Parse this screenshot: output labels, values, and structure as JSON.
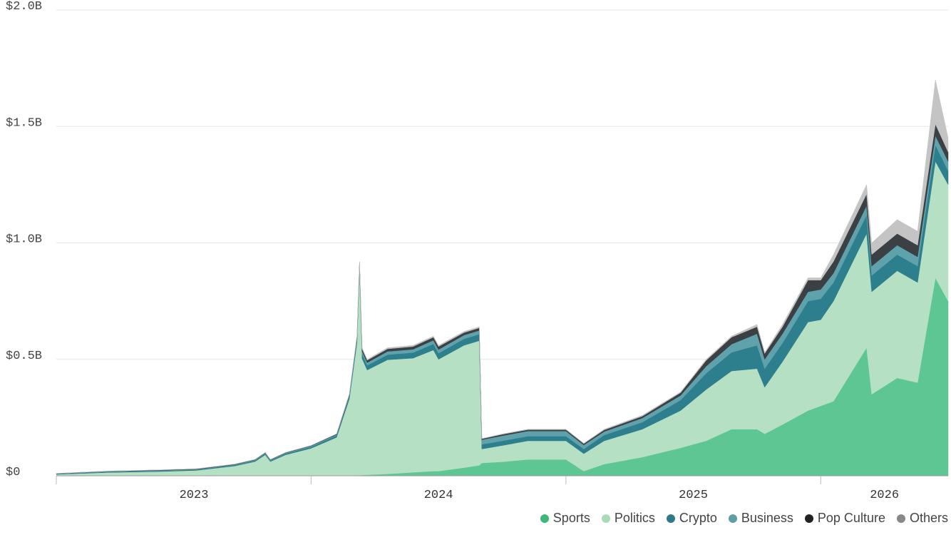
{
  "chart_data": {
    "type": "stacked-area",
    "x": [
      2023.0,
      2023.2,
      2023.4,
      2023.55,
      2023.7,
      2023.78,
      2023.82,
      2023.84,
      2023.9,
      2024.0,
      2024.1,
      2024.15,
      2024.18,
      2024.19,
      2024.2,
      2024.22,
      2024.3,
      2024.4,
      2024.48,
      2024.5,
      2024.6,
      2024.66,
      2024.67,
      2024.75,
      2024.85,
      2024.95,
      2025.0,
      2025.07,
      2025.15,
      2025.3,
      2025.45,
      2025.55,
      2025.65,
      2025.75,
      2025.78,
      2025.85,
      2025.95,
      2026.0,
      2026.05,
      2026.18,
      2026.2,
      2026.3,
      2026.38,
      2026.45,
      2026.5
    ],
    "series": [
      {
        "name": "Sports",
        "color": "#5ec693",
        "legend_color": "#3cb878",
        "values": [
          0,
          0,
          0,
          0,
          0,
          0,
          0,
          0,
          0,
          0,
          0,
          0,
          0.002,
          0.002,
          0.003,
          0.004,
          0.008,
          0.015,
          0.02,
          0.02,
          0.035,
          0.045,
          0.055,
          0.06,
          0.07,
          0.07,
          0.07,
          0.02,
          0.05,
          0.08,
          0.12,
          0.15,
          0.2,
          0.2,
          0.18,
          0.22,
          0.28,
          0.3,
          0.32,
          0.55,
          0.35,
          0.42,
          0.4,
          0.85,
          0.75
        ]
      },
      {
        "name": "Politics",
        "color": "#b5e0c3",
        "legend_color": "#a8dcb9",
        "values": [
          0.006,
          0.014,
          0.018,
          0.023,
          0.042,
          0.061,
          0.09,
          0.061,
          0.09,
          0.118,
          0.165,
          0.33,
          0.57,
          0.89,
          0.5,
          0.45,
          0.49,
          0.49,
          0.52,
          0.48,
          0.525,
          0.535,
          0.06,
          0.07,
          0.08,
          0.08,
          0.08,
          0.075,
          0.1,
          0.12,
          0.16,
          0.22,
          0.25,
          0.26,
          0.2,
          0.27,
          0.38,
          0.37,
          0.43,
          0.49,
          0.44,
          0.46,
          0.43,
          0.5,
          0.5
        ]
      },
      {
        "name": "Crypto",
        "color": "#2e7f8e",
        "legend_color": "#2c7a8a",
        "values": [
          0.002,
          0.003,
          0.003,
          0.003,
          0.004,
          0.004,
          0.005,
          0.004,
          0.005,
          0.006,
          0.008,
          0.01,
          0.015,
          0.015,
          0.02,
          0.02,
          0.022,
          0.024,
          0.026,
          0.026,
          0.028,
          0.028,
          0.02,
          0.02,
          0.02,
          0.02,
          0.02,
          0.02,
          0.025,
          0.03,
          0.045,
          0.07,
          0.08,
          0.1,
          0.08,
          0.08,
          0.09,
          0.09,
          0.08,
          0.08,
          0.07,
          0.07,
          0.07,
          0.07,
          0.06
        ]
      },
      {
        "name": "Business",
        "color": "#5fa2ab",
        "legend_color": "#5c9fa8",
        "values": [
          0.001,
          0.002,
          0.002,
          0.002,
          0.002,
          0.003,
          0.003,
          0.003,
          0.003,
          0.004,
          0.004,
          0.005,
          0.005,
          0.005,
          0.012,
          0.012,
          0.014,
          0.014,
          0.016,
          0.016,
          0.016,
          0.016,
          0.02,
          0.022,
          0.022,
          0.022,
          0.022,
          0.017,
          0.015,
          0.018,
          0.02,
          0.03,
          0.035,
          0.05,
          0.04,
          0.04,
          0.04,
          0.04,
          0.04,
          0.04,
          0.04,
          0.04,
          0.04,
          0.04,
          0.04
        ]
      },
      {
        "name": "Pop Culture",
        "color": "#3b4045",
        "legend_color": "#222222",
        "values": [
          0.001,
          0.001,
          0.002,
          0.002,
          0.002,
          0.002,
          0.002,
          0.002,
          0.002,
          0.002,
          0.003,
          0.005,
          0.006,
          0.006,
          0.01,
          0.01,
          0.011,
          0.012,
          0.013,
          0.013,
          0.011,
          0.011,
          0.004,
          0.006,
          0.006,
          0.006,
          0.006,
          0.006,
          0.007,
          0.008,
          0.012,
          0.025,
          0.03,
          0.03,
          0.025,
          0.03,
          0.05,
          0.04,
          0.05,
          0.05,
          0.05,
          0.05,
          0.05,
          0.05,
          0.04
        ]
      },
      {
        "name": "Others",
        "color": "#c4c4c4",
        "legend_color": "#888888",
        "values": [
          0,
          0,
          0,
          0,
          0,
          0,
          0,
          0,
          0,
          0,
          0,
          0,
          0.002,
          0.002,
          0.005,
          0.004,
          0.005,
          0.005,
          0.005,
          0.005,
          0.005,
          0.005,
          0.001,
          0.002,
          0.002,
          0.002,
          0.002,
          0.002,
          0.003,
          0.004,
          0.003,
          0.005,
          0.005,
          0.01,
          0.005,
          0.01,
          0.01,
          0.01,
          0.03,
          0.04,
          0.05,
          0.06,
          0.06,
          0.19,
          0.06
        ]
      }
    ],
    "xlim": [
      2023.0,
      2026.5
    ],
    "xticks": [
      {
        "value": 2023.54,
        "label": "2023"
      },
      {
        "value": 2024.5,
        "label": "2024"
      },
      {
        "value": 2025.5,
        "label": "2025"
      },
      {
        "value": 2026.25,
        "label": "2026"
      }
    ],
    "xtick_marks": [
      2023,
      2024,
      2025,
      2026
    ],
    "ylim": [
      0,
      2.0
    ],
    "yticks": [
      {
        "value": 0,
        "label": "$0"
      },
      {
        "value": 0.5,
        "label": "$0.5B"
      },
      {
        "value": 1.0,
        "label": "$1.0B"
      },
      {
        "value": 1.5,
        "label": "$1.5B"
      },
      {
        "value": 2.0,
        "label": "$2.0B"
      }
    ],
    "grid": true
  }
}
